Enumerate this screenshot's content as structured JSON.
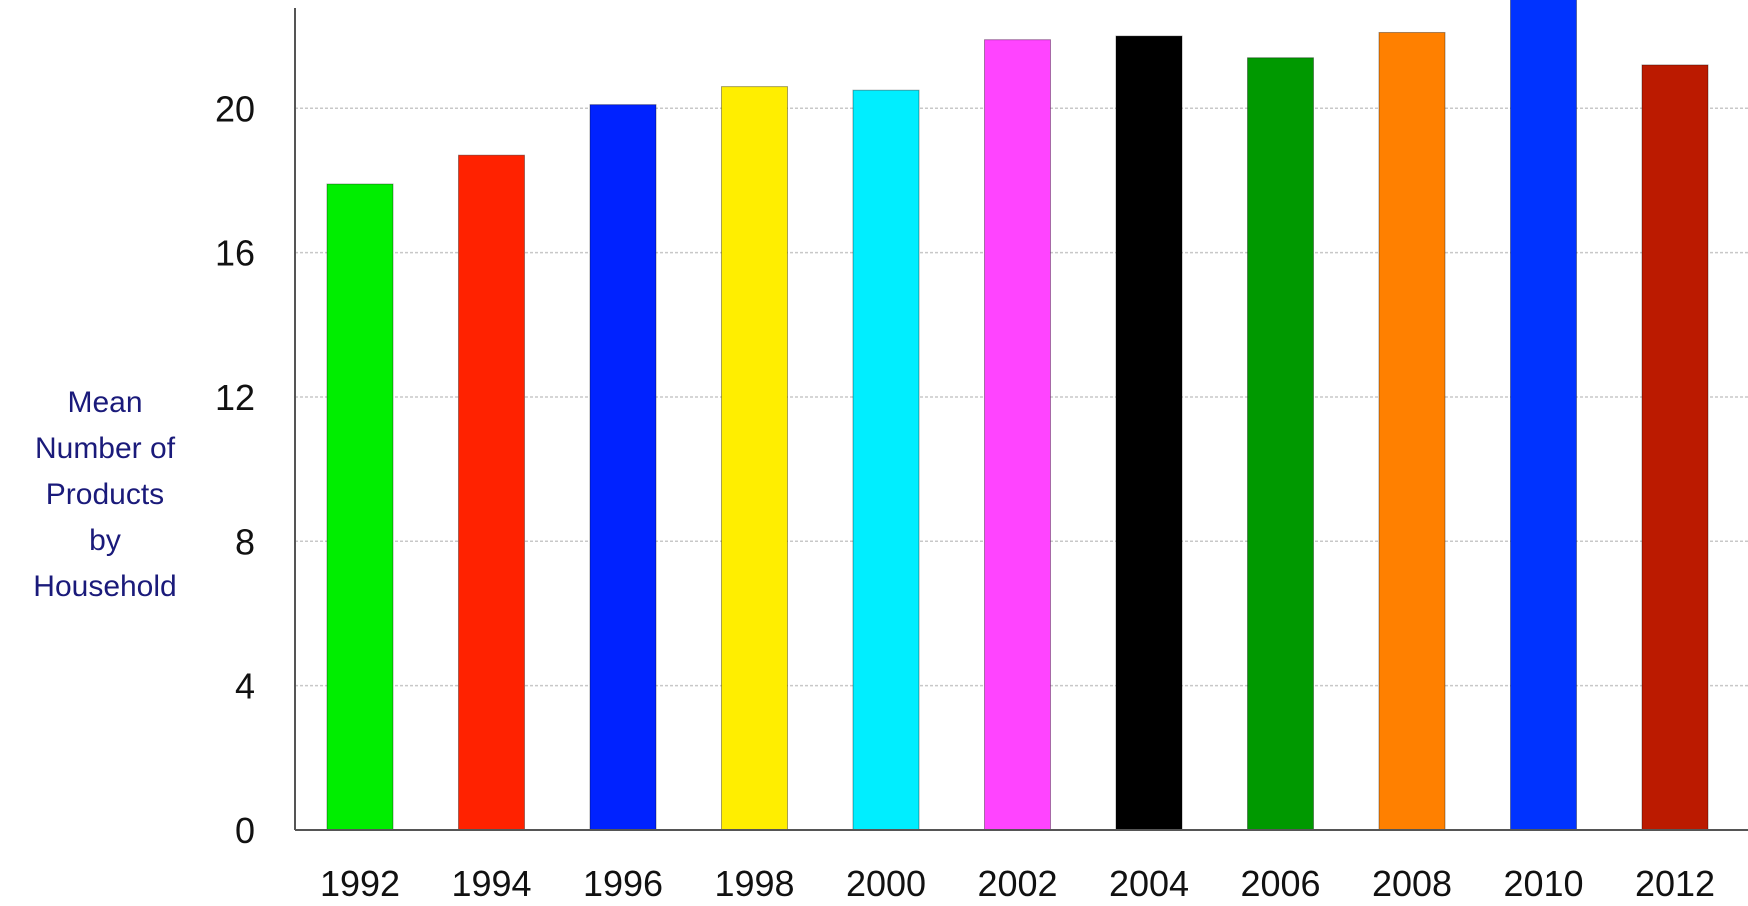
{
  "chart_data": {
    "type": "bar",
    "categories": [
      "1992",
      "1994",
      "1996",
      "1998",
      "2000",
      "2002",
      "2004",
      "2006",
      "2008",
      "2010",
      "2012"
    ],
    "values": [
      17.9,
      18.7,
      20.1,
      20.6,
      20.5,
      21.9,
      22.0,
      21.4,
      22.1,
      23.1,
      21.2
    ],
    "colors": [
      "#00ee00",
      "#ff2200",
      "#0022ff",
      "#ffee00",
      "#00eeff",
      "#ff44ff",
      "#000000",
      "#009900",
      "#ff8000",
      "#0033ff",
      "#bb1a00"
    ],
    "ylabel_lines": [
      "Mean",
      "Number of",
      "Products",
      "by",
      "Household"
    ],
    "yticks": [
      0,
      4,
      8,
      12,
      16,
      20
    ],
    "ylim": [
      0,
      23
    ],
    "grid": true
  }
}
